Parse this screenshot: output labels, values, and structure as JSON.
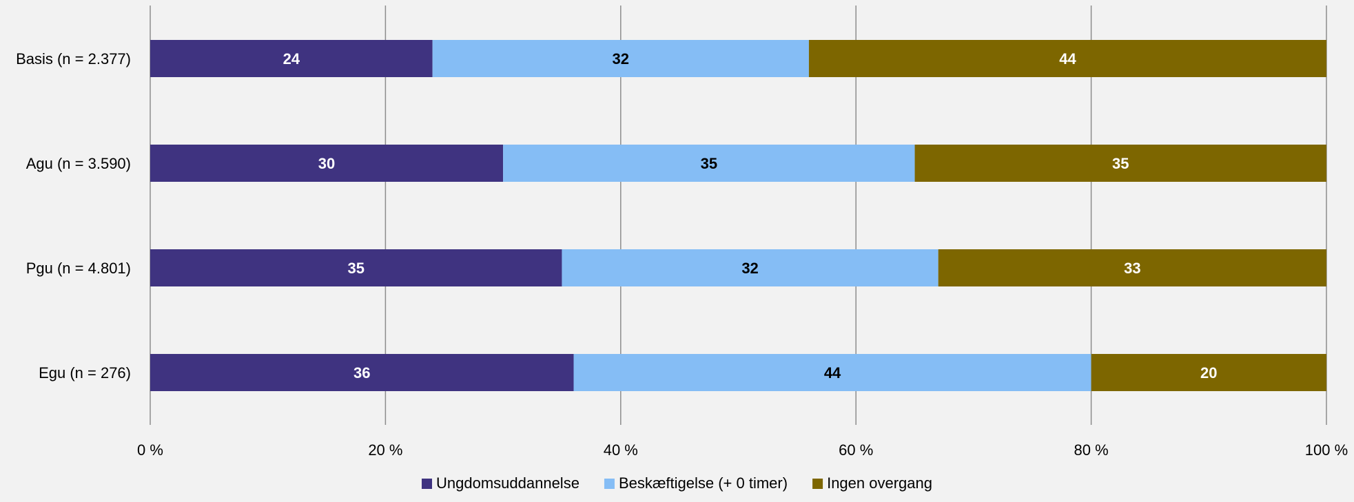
{
  "chart_data": {
    "type": "bar",
    "orientation": "horizontal",
    "stacked": true,
    "categories": [
      "Basis (n = 2.377)",
      "Agu (n = 3.590)",
      "Pgu (n = 4.801)",
      "Egu (n = 276)"
    ],
    "series": [
      {
        "name": "Ungdomsuddannelse",
        "color": "#3f3380",
        "label_color": "#ffffff",
        "values": [
          24,
          30,
          35,
          36
        ]
      },
      {
        "name": "Beskæftigelse (+ 0 timer)",
        "color": "#85bdf5",
        "label_color": "#000000",
        "values": [
          32,
          35,
          32,
          44
        ]
      },
      {
        "name": "Ingen overgang",
        "color": "#7d6600",
        "label_color": "#ffffff",
        "values": [
          44,
          35,
          33,
          20
        ]
      }
    ],
    "xlim": [
      0,
      100
    ],
    "x_ticks": [
      0,
      20,
      40,
      60,
      80,
      100
    ],
    "x_tick_labels": [
      "0 %",
      "20 %",
      "40 %",
      "60 %",
      "80 %",
      "100 %"
    ],
    "grid": "vertical",
    "legend_position": "bottom-center"
  }
}
